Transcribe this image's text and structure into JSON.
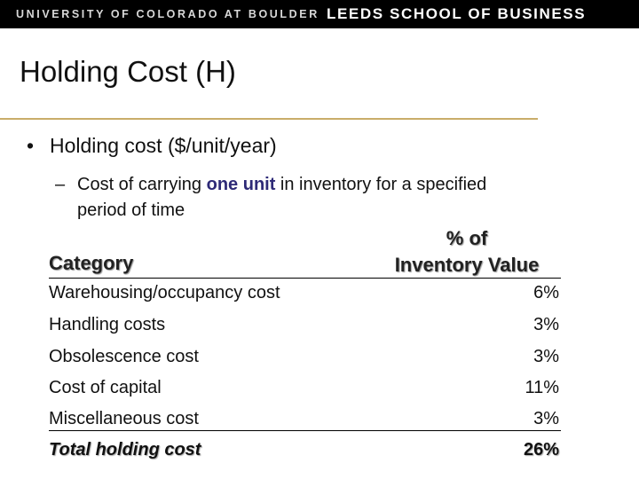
{
  "banner": {
    "university": "UNIVERSITY OF COLORADO AT BOULDER",
    "school": "LEEDS SCHOOL OF BUSINESS"
  },
  "slide": {
    "title": "Holding Cost (H)",
    "bullet": "Holding cost ($/unit/year)",
    "sub_dash": "–",
    "sub_pre": "Cost of carrying ",
    "sub_em": "one unit",
    "sub_post": " in inventory for a specified",
    "sub_line2": "period of time"
  },
  "table": {
    "header_category": "Category",
    "header_pct_line1": "% of",
    "header_pct_line2": "Inventory Value",
    "rows": [
      {
        "category": "Warehousing/occupancy cost",
        "pct": "6%"
      },
      {
        "category": "Handling costs",
        "pct": "3%"
      },
      {
        "category": "Obsolescence cost",
        "pct": "3%"
      },
      {
        "category": "Cost of capital",
        "pct": "11%"
      },
      {
        "category": "Miscellaneous cost",
        "pct": "3%"
      }
    ],
    "total": {
      "category": "Total holding cost",
      "pct": "26%"
    }
  }
}
